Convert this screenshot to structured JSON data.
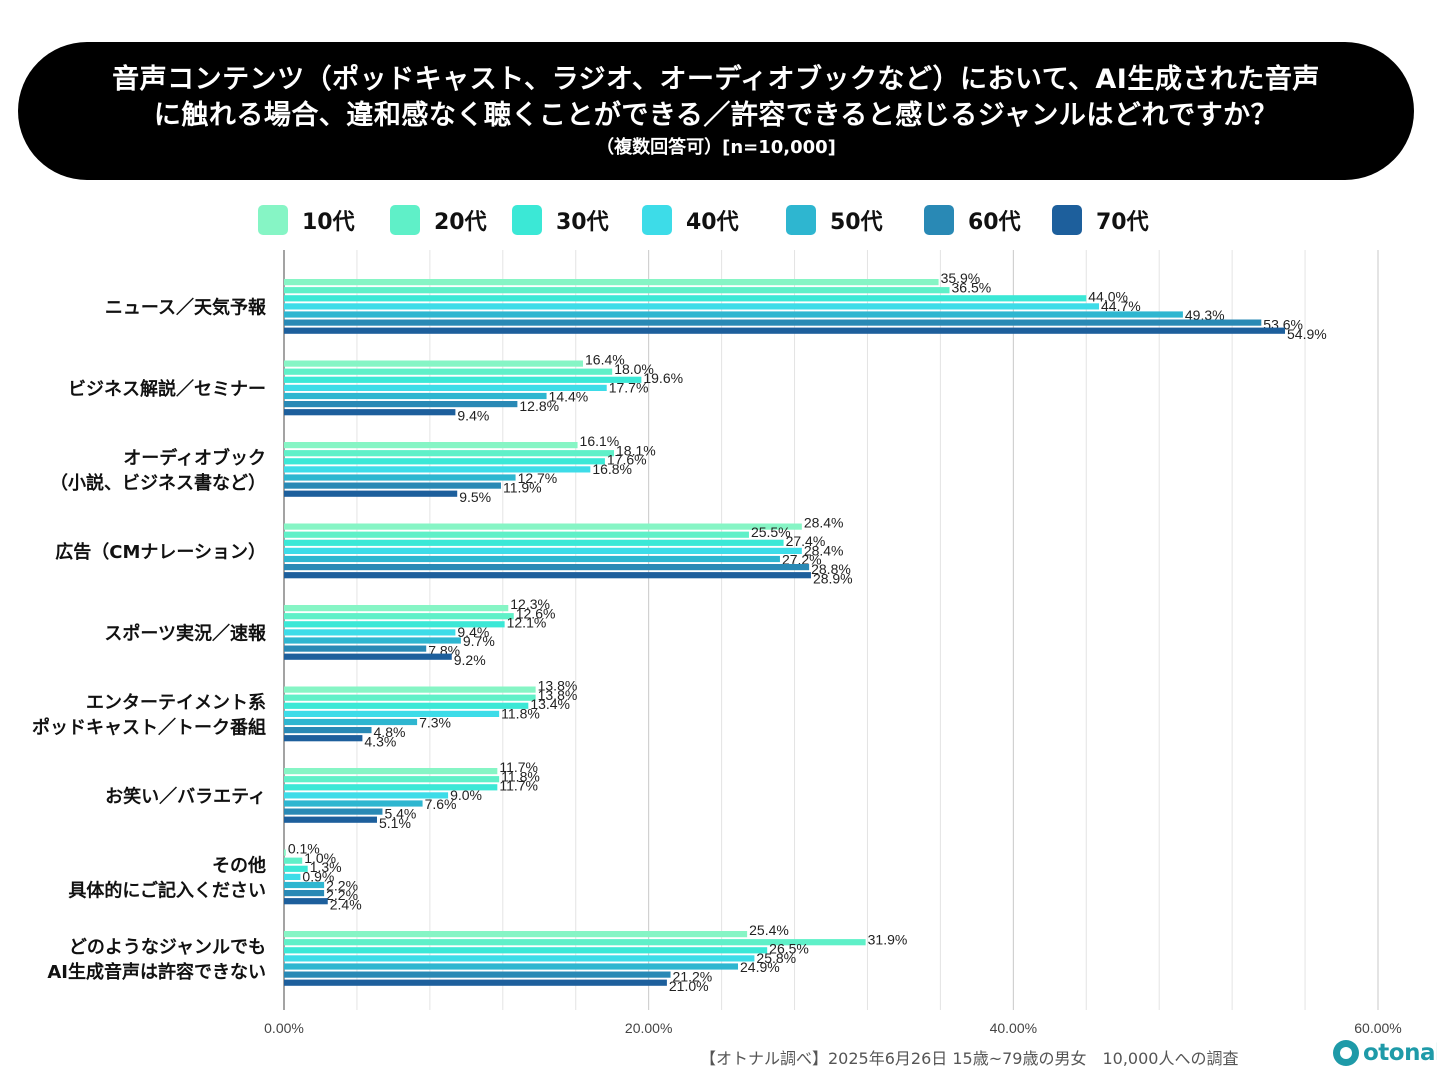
{
  "title": {
    "line1": "音声コンテンツ（ポッドキャスト、ラジオ、オーディオブックなど）において、AI生成された音声",
    "line2": "に触れる場合、違和感なく聴くことができる／許容できると感じるジャンルはどれですか？",
    "sub": "（複数回答可）[n=10,000]"
  },
  "footer": {
    "source": "【オトナル調べ】2025年6月26日 15歳~79歳の男女　10,000人への調査",
    "logo": "otonal"
  },
  "chart_data": {
    "type": "bar",
    "orientation": "horizontal",
    "xlim": [
      0,
      60
    ],
    "xticks": [
      "0.00%",
      "20.00%",
      "40.00%",
      "60.00%"
    ],
    "grid": true,
    "legend_position": "top",
    "categories": [
      [
        "ニュース／天気予報"
      ],
      [
        "ビジネス解説／セミナー"
      ],
      [
        "オーディオブック",
        "（小説、ビジネス書など）"
      ],
      [
        "広告（CMナレーション）"
      ],
      [
        "スポーツ実況／速報"
      ],
      [
        "エンターテイメント系",
        "ポッドキャスト／トーク番組"
      ],
      [
        "お笑い／バラエティ"
      ],
      [
        "その他",
        "具体的にご記入ください"
      ],
      [
        "どのようなジャンルでも",
        "AI生成音声は許容できない"
      ]
    ],
    "series": [
      {
        "name": "10代",
        "color": "#86f5c5",
        "values": [
          35.9,
          16.4,
          16.1,
          28.4,
          12.3,
          13.8,
          11.7,
          0.1,
          25.4
        ]
      },
      {
        "name": "20代",
        "color": "#5ff0c8",
        "values": [
          36.5,
          18.0,
          18.1,
          25.5,
          12.6,
          13.8,
          11.8,
          1.0,
          31.9
        ]
      },
      {
        "name": "30代",
        "color": "#3be8d6",
        "values": [
          44.0,
          19.6,
          17.6,
          27.4,
          12.1,
          13.4,
          11.7,
          1.3,
          26.5
        ]
      },
      {
        "name": "40代",
        "color": "#3ddce8",
        "values": [
          44.7,
          17.7,
          16.8,
          28.4,
          9.4,
          11.8,
          9.0,
          0.9,
          25.8
        ]
      },
      {
        "name": "50代",
        "color": "#2eb6d0",
        "values": [
          49.3,
          14.4,
          12.7,
          27.2,
          9.7,
          7.3,
          7.6,
          2.2,
          24.9
        ]
      },
      {
        "name": "60代",
        "color": "#2989b5",
        "values": [
          53.6,
          12.8,
          11.9,
          28.8,
          7.8,
          4.8,
          5.4,
          2.2,
          21.2
        ]
      },
      {
        "name": "70代",
        "color": "#1d5f9c",
        "values": [
          54.9,
          9.4,
          9.5,
          28.9,
          9.2,
          4.3,
          5.1,
          2.4,
          21.0
        ]
      }
    ]
  }
}
